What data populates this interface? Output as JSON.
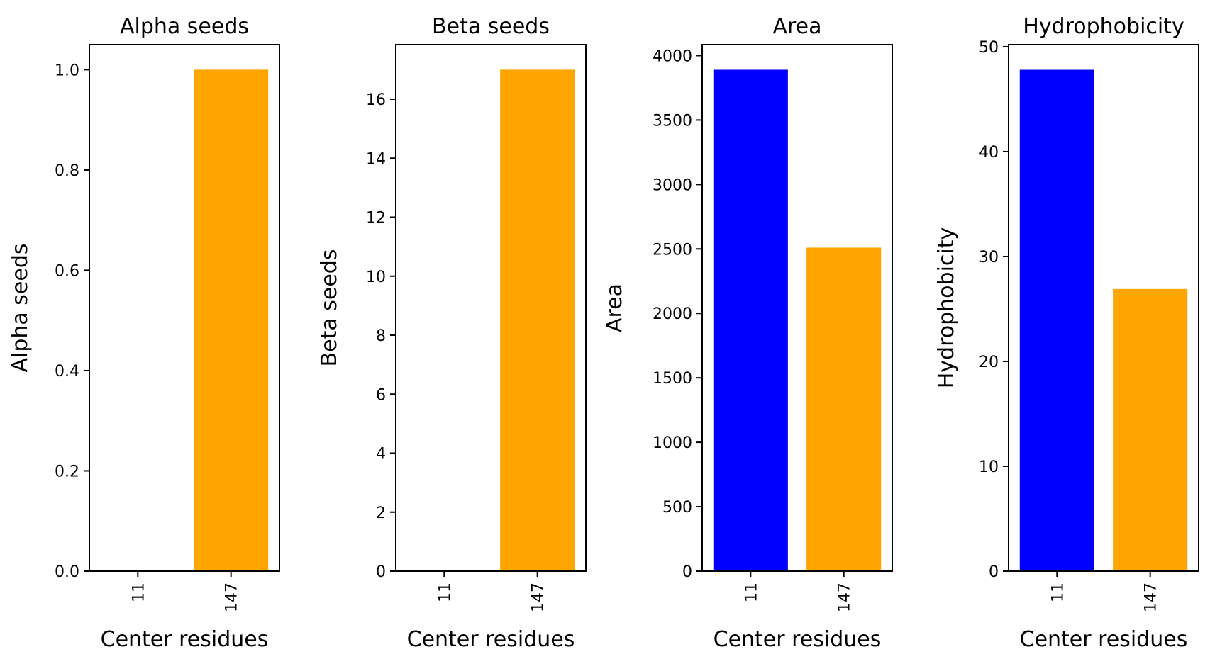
{
  "chart_data": [
    {
      "type": "bar",
      "title": "Alpha seeds",
      "xlabel": "Center residues",
      "ylabel": "Alpha seeds",
      "categories": [
        "11",
        "147"
      ],
      "values": [
        0,
        1.0
      ],
      "colors": [
        "#0000ff",
        "#ffa500"
      ],
      "ylim": [
        0,
        1.05
      ],
      "yticks": [
        0.0,
        0.2,
        0.4,
        0.6,
        0.8,
        1.0
      ],
      "ytick_labels": [
        "0.0",
        "0.2",
        "0.4",
        "0.6",
        "0.8",
        "1.0"
      ]
    },
    {
      "type": "bar",
      "title": "Beta seeds",
      "xlabel": "Center residues",
      "ylabel": "Beta seeds",
      "categories": [
        "11",
        "147"
      ],
      "values": [
        0,
        17
      ],
      "colors": [
        "#0000ff",
        "#ffa500"
      ],
      "ylim": [
        0,
        17.85
      ],
      "yticks": [
        0,
        2,
        4,
        6,
        8,
        10,
        12,
        14,
        16
      ],
      "ytick_labels": [
        "0",
        "2",
        "4",
        "6",
        "8",
        "10",
        "12",
        "14",
        "16"
      ]
    },
    {
      "type": "bar",
      "title": "Area",
      "xlabel": "Center residues",
      "ylabel": "Area",
      "categories": [
        "11",
        "147"
      ],
      "values": [
        3890,
        2510
      ],
      "colors": [
        "#0000ff",
        "#ffa500"
      ],
      "ylim": [
        0,
        4085
      ],
      "yticks": [
        0,
        500,
        1000,
        1500,
        2000,
        2500,
        3000,
        3500,
        4000
      ],
      "ytick_labels": [
        "0",
        "500",
        "1000",
        "1500",
        "2000",
        "2500",
        "3000",
        "3500",
        "4000"
      ]
    },
    {
      "type": "bar",
      "title": "Hydrophobicity",
      "xlabel": "Center residues",
      "ylabel": "Hydrophobicity",
      "categories": [
        "11",
        "147"
      ],
      "values": [
        47.8,
        26.9
      ],
      "colors": [
        "#0000ff",
        "#ffa500"
      ],
      "ylim": [
        0,
        50.2
      ],
      "yticks": [
        0,
        10,
        20,
        30,
        40,
        50
      ],
      "ytick_labels": [
        "0",
        "10",
        "20",
        "30",
        "40",
        "50"
      ]
    }
  ]
}
